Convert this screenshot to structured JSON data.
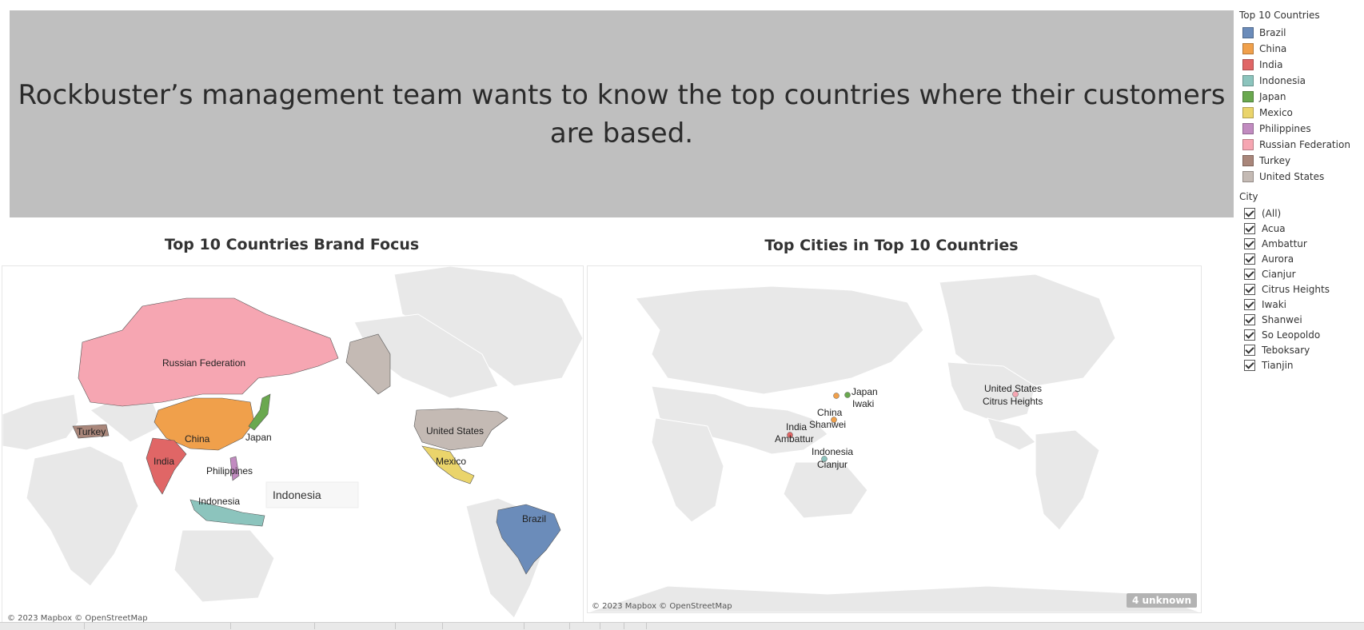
{
  "banner": {
    "text": "Rockbuster’s management team wants to know the top countries where their customers are based."
  },
  "left_sheet": {
    "title": "Top 10 Countries Brand Focus",
    "attribution": "© 2023 Mapbox © OpenStreetMap",
    "labels": {
      "russia": "Russian Federation",
      "turkey": "Turkey",
      "china": "China",
      "japan": "Japan",
      "india": "India",
      "philippines": "Philippines",
      "indonesia": "Indonesia",
      "indonesia_tooltip": "Indonesia",
      "us": "United States",
      "mexico": "Mexico",
      "brazil": "Brazil"
    }
  },
  "right_sheet": {
    "title": "Top Cities in Top 10 Countries",
    "attribution": "© 2023 Mapbox © OpenStreetMap",
    "unknown_badge": "4 unknown",
    "labels": {
      "japan": "Japan",
      "iwaki": "Iwaki",
      "china": "China",
      "shanwei": "Shanwei",
      "india": "India",
      "ambattur": "Ambattur",
      "indonesia": "Indonesia",
      "cianjur": "Cianjur",
      "us": "United States",
      "citrus_heights": "Citrus Heights"
    }
  },
  "legend": {
    "title": "Top 10 Countries",
    "items": [
      {
        "label": "Brazil",
        "color": "#6b8cba"
      },
      {
        "label": "China",
        "color": "#f0a04b"
      },
      {
        "label": "India",
        "color": "#e06666"
      },
      {
        "label": "Indonesia",
        "color": "#8cc4bd"
      },
      {
        "label": "Japan",
        "color": "#6aa84f"
      },
      {
        "label": "Mexico",
        "color": "#ead46b"
      },
      {
        "label": "Philippines",
        "color": "#c18bc0"
      },
      {
        "label": "Russian Federation",
        "color": "#f6a6b2"
      },
      {
        "label": "Turkey",
        "color": "#a9867a"
      },
      {
        "label": "United States",
        "color": "#c4bab4"
      }
    ]
  },
  "city_filter": {
    "title": "City",
    "items": [
      "(All)",
      "Acua",
      "Ambattur",
      "Aurora",
      "Cianjur",
      "Citrus Heights",
      "Iwaki",
      "Shanwei",
      "So Leopoldo",
      "Teboksary",
      "Tianjin"
    ]
  },
  "colors": {
    "banner_bg": "#bfbfbf",
    "land": "#e8e8e8",
    "land_stroke": "#ffffff"
  }
}
